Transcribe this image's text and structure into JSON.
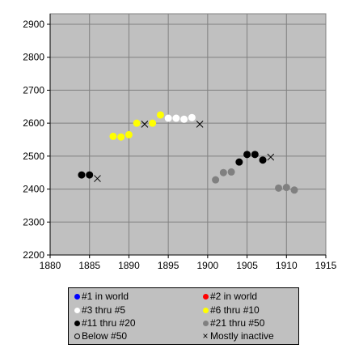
{
  "chart_data": {
    "type": "scatter",
    "title": "",
    "xlabel": "",
    "ylabel": "",
    "xlim": [
      1880,
      1915
    ],
    "ylim": [
      2200,
      2950
    ],
    "xticks": [
      "1880",
      "1885",
      "1890",
      "1895",
      "1900",
      "1905",
      "1910",
      "1915"
    ],
    "yticks": [
      "2200",
      "2300",
      "2400",
      "2500",
      "2600",
      "2700",
      "2800",
      "2900"
    ],
    "grid": true,
    "background": "#c0c0c0",
    "series": [
      {
        "category": "#11 thru #20",
        "marker": "dot",
        "color": "#000000",
        "points": [
          [
            1884,
            2443
          ],
          [
            1885,
            2443
          ]
        ]
      },
      {
        "category": "Mostly inactive",
        "marker": "x",
        "color": "#000000",
        "points": [
          [
            1886,
            2432
          ]
        ]
      },
      {
        "category": "#6 thru #10",
        "marker": "dot",
        "color": "#ffff00",
        "points": [
          [
            1888,
            2560
          ],
          [
            1889,
            2558
          ],
          [
            1890,
            2565
          ],
          [
            1891,
            2600
          ],
          [
            1893,
            2600
          ],
          [
            1894,
            2625
          ]
        ]
      },
      {
        "category": "Mostly inactive",
        "marker": "x",
        "color": "#000000",
        "points": [
          [
            1892,
            2597
          ]
        ]
      },
      {
        "category": "#3 thru #5",
        "marker": "dot",
        "color": "#ffffff",
        "points": [
          [
            1895,
            2615
          ],
          [
            1896,
            2615
          ],
          [
            1897,
            2612
          ],
          [
            1898,
            2617
          ]
        ]
      },
      {
        "category": "Mostly inactive",
        "marker": "x",
        "color": "#000000",
        "points": [
          [
            1899,
            2597
          ]
        ]
      },
      {
        "category": "#21 thru #50",
        "marker": "dot",
        "color": "#808080",
        "points": [
          [
            1901,
            2428
          ],
          [
            1902,
            2450
          ],
          [
            1903,
            2452
          ]
        ]
      },
      {
        "category": "#11 thru #20",
        "marker": "dot",
        "color": "#000000",
        "points": [
          [
            1904,
            2482
          ],
          [
            1905,
            2505
          ],
          [
            1906,
            2505
          ],
          [
            1907,
            2488
          ]
        ]
      },
      {
        "category": "Mostly inactive",
        "marker": "x",
        "color": "#000000",
        "points": [
          [
            1908,
            2497
          ]
        ]
      },
      {
        "category": "#21 thru #50",
        "marker": "dot",
        "color": "#808080",
        "points": [
          [
            1909,
            2403
          ],
          [
            1910,
            2405
          ],
          [
            1911,
            2397
          ]
        ]
      }
    ]
  },
  "legend": {
    "items": [
      {
        "label": "#1 in world",
        "marker": "dot",
        "color": "#0000ff"
      },
      {
        "label": "#2 in world",
        "marker": "dot",
        "color": "#ff0000"
      },
      {
        "label": "#3 thru #5",
        "marker": "dot",
        "color": "#ffffff"
      },
      {
        "label": "#6 thru #10",
        "marker": "dot",
        "color": "#ffff00"
      },
      {
        "label": "#11 thru #20",
        "marker": "dot",
        "color": "#000000"
      },
      {
        "label": "#21 thru #50",
        "marker": "dot",
        "color": "#808080"
      },
      {
        "label": "Below #50",
        "marker": "circle",
        "color": "#000000"
      },
      {
        "label": "Mostly inactive",
        "marker": "x",
        "color": "#000000"
      }
    ]
  }
}
